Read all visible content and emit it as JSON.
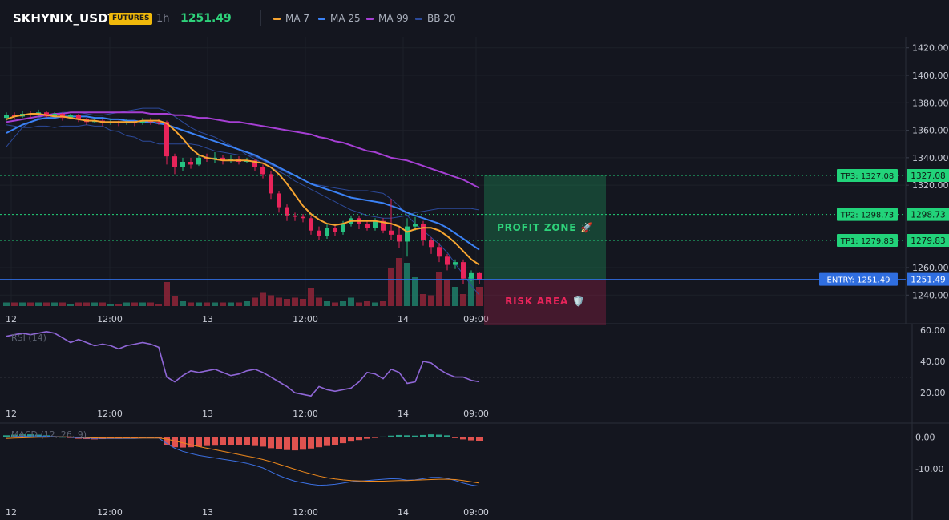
{
  "header": {
    "symbol": "SKHYNIX_USDT",
    "badge": "FUTURES",
    "timeframe": "1h",
    "price": "1251.49",
    "legend": [
      {
        "label": "MA 7",
        "color": "#f7a531"
      },
      {
        "label": "MA 25",
        "color": "#3b82f6"
      },
      {
        "label": "MA 99",
        "color": "#a63fd4"
      },
      {
        "label": "BB 20",
        "color": "#2c4a9a"
      }
    ]
  },
  "colors": {
    "background": "#14161f",
    "up": "#26c281",
    "down": "#e8245a",
    "profit": "#1fa061",
    "risk": "#8c1d44",
    "entry": "#2f6ee0"
  },
  "chart_data": [
    {
      "type": "candlestick",
      "title": "SKHYNIX_USDT",
      "x_ticks": [
        "12",
        "12:00",
        "13",
        "12:00",
        "14",
        "09:00"
      ],
      "y_ticks": [
        "1420.00",
        "1400.00",
        "1380.00",
        "1360.00",
        "1340.00",
        "1320.00",
        "1260.00",
        "1240.00"
      ],
      "ylim": [
        1232,
        1428
      ],
      "grid": true,
      "legend_placement": "top-left",
      "series": [
        {
          "name": "MA 7",
          "values": [
            1368,
            1370,
            1371,
            1372,
            1372,
            1371,
            1370,
            1370,
            1369,
            1368,
            1367,
            1367,
            1366,
            1366,
            1366,
            1366,
            1366,
            1367,
            1367,
            1367,
            1365,
            1360,
            1354,
            1347,
            1342,
            1340,
            1339,
            1338,
            1338,
            1338,
            1338,
            1337,
            1336,
            1333,
            1328,
            1321,
            1313,
            1305,
            1299,
            1295,
            1292,
            1291,
            1292,
            1294,
            1294,
            1294,
            1294,
            1293,
            1292,
            1290,
            1286,
            1288,
            1289,
            1289,
            1287,
            1283,
            1278,
            1272,
            1266,
            1262
          ]
        },
        {
          "name": "MA 25",
          "values": [
            1358,
            1361,
            1364,
            1366,
            1368,
            1369,
            1369,
            1370,
            1370,
            1370,
            1370,
            1369,
            1369,
            1368,
            1368,
            1367,
            1367,
            1366,
            1366,
            1365,
            1364,
            1362,
            1360,
            1358,
            1356,
            1354,
            1352,
            1350,
            1348,
            1346,
            1344,
            1342,
            1339,
            1336,
            1333,
            1330,
            1327,
            1324,
            1321,
            1319,
            1317,
            1315,
            1313,
            1311,
            1310,
            1309,
            1308,
            1307,
            1305,
            1303,
            1300,
            1298,
            1296,
            1294,
            1292,
            1289,
            1285,
            1281,
            1277,
            1273
          ]
        },
        {
          "name": "MA 99",
          "values": [
            1366,
            1367,
            1368,
            1369,
            1370,
            1371,
            1372,
            1372,
            1373,
            1373,
            1373,
            1373,
            1373,
            1373,
            1373,
            1373,
            1373,
            1373,
            1372,
            1372,
            1372,
            1371,
            1371,
            1370,
            1369,
            1369,
            1368,
            1367,
            1366,
            1366,
            1365,
            1364,
            1363,
            1362,
            1361,
            1360,
            1359,
            1358,
            1357,
            1355,
            1354,
            1352,
            1351,
            1349,
            1347,
            1345,
            1344,
            1342,
            1340,
            1339,
            1338,
            1336,
            1334,
            1332,
            1330,
            1328,
            1326,
            1324,
            1321,
            1318
          ]
        },
        {
          "name": "BB 20",
          "values": [
            1348,
            1355,
            1362,
            1366,
            1369,
            1371,
            1372,
            1373,
            1373,
            1373,
            1372,
            1371,
            1371,
            1372,
            1373,
            1374,
            1375,
            1376,
            1376,
            1376,
            1374,
            1370,
            1366,
            1362,
            1359,
            1357,
            1355,
            1352,
            1349,
            1346,
            1342,
            1339,
            1336,
            1333,
            1330,
            1327,
            1323,
            1320,
            1317,
            1314,
            1311,
            1308,
            1305,
            1302,
            1300,
            1298,
            1297,
            1296,
            1296,
            1297,
            1298,
            1300,
            1301,
            1302,
            1303,
            1303,
            1303,
            1303,
            1303,
            1302
          ]
        }
      ],
      "candles": [
        [
          1369,
          1371,
          1373,
          1367
        ],
        [
          1371,
          1370,
          1373,
          1368
        ],
        [
          1370,
          1372,
          1374,
          1369
        ],
        [
          1372,
          1371,
          1374,
          1369
        ],
        [
          1371,
          1373,
          1375,
          1370
        ],
        [
          1373,
          1370,
          1374,
          1369
        ],
        [
          1370,
          1372,
          1373,
          1369
        ],
        [
          1372,
          1369,
          1373,
          1367
        ],
        [
          1369,
          1371,
          1372,
          1368
        ],
        [
          1371,
          1368,
          1372,
          1366
        ],
        [
          1368,
          1366,
          1369,
          1364
        ],
        [
          1366,
          1367,
          1369,
          1365
        ],
        [
          1367,
          1365,
          1368,
          1363
        ],
        [
          1365,
          1366,
          1368,
          1364
        ],
        [
          1366,
          1365,
          1367,
          1363
        ],
        [
          1365,
          1366,
          1368,
          1364
        ],
        [
          1366,
          1365,
          1367,
          1363
        ],
        [
          1365,
          1367,
          1369,
          1364
        ],
        [
          1367,
          1366,
          1369,
          1364
        ],
        [
          1366,
          1365,
          1368,
          1364
        ],
        [
          1366,
          1341,
          1367,
          1335
        ],
        [
          1341,
          1333,
          1343,
          1328
        ],
        [
          1333,
          1337,
          1340,
          1330
        ],
        [
          1337,
          1335,
          1340,
          1332
        ],
        [
          1335,
          1340,
          1342,
          1334
        ],
        [
          1340,
          1339,
          1343,
          1337
        ],
        [
          1339,
          1340,
          1344,
          1336
        ],
        [
          1340,
          1338,
          1342,
          1335
        ],
        [
          1338,
          1339,
          1342,
          1336
        ],
        [
          1339,
          1337,
          1341,
          1335
        ],
        [
          1337,
          1338,
          1340,
          1336
        ],
        [
          1338,
          1333,
          1339,
          1330
        ],
        [
          1333,
          1328,
          1335,
          1325
        ],
        [
          1328,
          1314,
          1330,
          1310
        ],
        [
          1314,
          1304,
          1316,
          1300
        ],
        [
          1304,
          1298,
          1306,
          1294
        ],
        [
          1298,
          1297,
          1300,
          1294
        ],
        [
          1297,
          1296,
          1299,
          1293
        ],
        [
          1296,
          1287,
          1298,
          1284
        ],
        [
          1287,
          1283,
          1290,
          1280
        ],
        [
          1283,
          1289,
          1292,
          1281
        ],
        [
          1289,
          1286,
          1291,
          1283
        ],
        [
          1286,
          1292,
          1294,
          1284
        ],
        [
          1292,
          1296,
          1298,
          1290
        ],
        [
          1296,
          1292,
          1298,
          1288
        ],
        [
          1292,
          1289,
          1295,
          1287
        ],
        [
          1289,
          1294,
          1296,
          1287
        ],
        [
          1294,
          1287,
          1296,
          1285
        ],
        [
          1287,
          1284,
          1310,
          1280
        ],
        [
          1284,
          1279,
          1290,
          1274
        ],
        [
          1279,
          1290,
          1296,
          1268
        ],
        [
          1290,
          1292,
          1297,
          1287
        ],
        [
          1292,
          1280,
          1294,
          1276
        ],
        [
          1280,
          1275,
          1282,
          1270
        ],
        [
          1275,
          1268,
          1278,
          1264
        ],
        [
          1268,
          1262,
          1270,
          1258
        ],
        [
          1262,
          1264,
          1266,
          1259
        ],
        [
          1264,
          1252,
          1266,
          1248
        ],
        [
          1252,
          1256,
          1258,
          1250
        ],
        [
          1256,
          1251,
          1257,
          1248
        ]
      ],
      "volume": [
        3,
        3,
        3,
        3,
        3,
        3,
        3,
        3,
        2,
        3,
        3,
        3,
        3,
        2,
        2,
        3,
        3,
        3,
        3,
        2,
        20,
        8,
        4,
        3,
        3,
        3,
        3,
        3,
        3,
        3,
        4,
        7,
        11,
        9,
        7,
        6,
        7,
        6,
        15,
        7,
        4,
        3,
        4,
        7,
        3,
        4,
        3,
        4,
        32,
        40,
        36,
        24,
        10,
        9,
        28,
        22,
        16,
        10,
        24,
        16
      ],
      "price_levels": [
        {
          "label": "TP3: 1327.08",
          "value": 1327.08,
          "tag": "1327.08"
        },
        {
          "label": "TP2: 1298.73",
          "value": 1298.73,
          "tag": "1298.73"
        },
        {
          "label": "TP1: 1279.83",
          "value": 1279.83,
          "tag": "1279.83"
        },
        {
          "label": "ENTRY: 1251.49",
          "value": 1251.49,
          "tag": "1251.49"
        }
      ],
      "zones": {
        "profit": "PROFIT ZONE 🚀",
        "risk": "RISK AREA 🛡️"
      }
    },
    {
      "type": "line",
      "title": "RSI (14)",
      "x_ticks": [
        "12",
        "12:00",
        "13",
        "12:00",
        "14",
        "09:00"
      ],
      "y_ticks": [
        "60.00",
        "40.00",
        "20.00"
      ],
      "ylim": [
        14,
        64
      ],
      "guide": 30,
      "series": [
        {
          "name": "RSI (14)",
          "values": [
            56,
            57,
            58,
            57,
            58,
            59,
            58,
            55,
            52,
            54,
            52,
            50,
            51,
            50,
            48,
            50,
            51,
            52,
            51,
            49,
            30,
            27,
            31,
            34,
            33,
            34,
            35,
            33,
            31,
            32,
            34,
            35,
            33,
            30,
            27,
            24,
            20,
            19,
            18,
            24,
            22,
            21,
            22,
            23,
            27,
            33,
            32,
            29,
            35,
            33,
            26,
            27,
            40,
            39,
            35,
            32,
            30,
            30,
            28,
            27
          ]
        }
      ]
    },
    {
      "type": "bar",
      "title": "MACD (12, 26, 9)",
      "x_ticks": [
        "12",
        "12:00",
        "13",
        "12:00",
        "14",
        "09:00"
      ],
      "y_ticks": [
        "0.00",
        "-10.00"
      ],
      "ylim": [
        -20,
        4
      ],
      "series": [
        {
          "name": "histogram",
          "values": [
            0.6,
            0.8,
            0.9,
            0.9,
            0.8,
            0.6,
            0.3,
            0.1,
            -0.2,
            -0.5,
            -0.6,
            -0.7,
            -0.6,
            -0.5,
            -0.5,
            -0.4,
            -0.4,
            -0.3,
            -0.3,
            -0.2,
            -2.5,
            -3.2,
            -3.3,
            -3.2,
            -3.0,
            -2.8,
            -2.7,
            -2.6,
            -2.5,
            -2.5,
            -2.6,
            -2.8,
            -3.0,
            -3.5,
            -3.8,
            -4.1,
            -4.2,
            -4.0,
            -3.6,
            -3.2,
            -2.8,
            -2.4,
            -1.9,
            -1.4,
            -0.9,
            -0.5,
            -0.2,
            0.2,
            0.5,
            0.7,
            0.6,
            0.5,
            0.7,
            0.9,
            0.8,
            0.6,
            -0.3,
            -0.7,
            -1.0,
            -1.3
          ]
        },
        {
          "name": "macd",
          "values": [
            0,
            0.2,
            0.3,
            0.4,
            0.4,
            0.3,
            0.2,
            0.1,
            0,
            -0.2,
            -0.3,
            -0.4,
            -0.4,
            -0.4,
            -0.4,
            -0.4,
            -0.4,
            -0.3,
            -0.3,
            -0.3,
            -2,
            -3.5,
            -4.5,
            -5.2,
            -5.8,
            -6.2,
            -6.6,
            -7,
            -7.4,
            -7.8,
            -8.3,
            -9,
            -9.8,
            -11,
            -12.2,
            -13.2,
            -14,
            -14.5,
            -15,
            -15.3,
            -15.2,
            -15,
            -14.6,
            -14.2,
            -14,
            -13.8,
            -13.6,
            -13.4,
            -13.2,
            -13.3,
            -13.7,
            -13.6,
            -13.2,
            -12.8,
            -12.8,
            -13.1,
            -13.8,
            -14.6,
            -15.2,
            -15.6
          ]
        },
        {
          "name": "signal",
          "values": [
            -0.4,
            -0.3,
            -0.2,
            -0.1,
            0,
            0,
            0.1,
            0.1,
            0.1,
            0,
            -0.1,
            -0.2,
            -0.3,
            -0.3,
            -0.3,
            -0.3,
            -0.3,
            -0.3,
            -0.3,
            -0.3,
            -0.6,
            -1.2,
            -1.8,
            -2.4,
            -3,
            -3.5,
            -4,
            -4.5,
            -5,
            -5.5,
            -6,
            -6.5,
            -7.1,
            -7.8,
            -8.6,
            -9.4,
            -10.2,
            -11,
            -11.7,
            -12.4,
            -12.9,
            -13.3,
            -13.6,
            -13.8,
            -13.9,
            -14,
            -14,
            -14,
            -13.9,
            -13.8,
            -13.8,
            -13.7,
            -13.6,
            -13.5,
            -13.4,
            -13.4,
            -13.5,
            -13.8,
            -14.2,
            -14.6
          ]
        }
      ]
    }
  ]
}
